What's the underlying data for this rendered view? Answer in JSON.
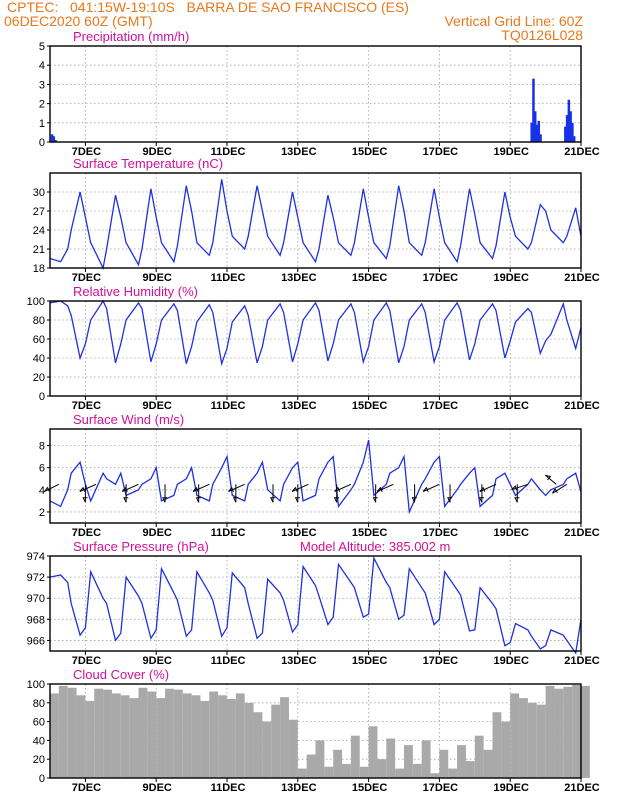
{
  "header": {
    "line1_left": "CPTEC:   041:15W-19:10S   BARRA DE SAO FRANCISCO (ES)",
    "line2_left": "06DEC2020 60Z (GMT)",
    "line2_right": "Vertical Grid Line: 60Z",
    "line3_right": "TQ0126L028"
  },
  "colors": {
    "header": "#e8781a",
    "title": "#d0109a",
    "line": "#2030e0",
    "bar_precip": "#1830e8",
    "bar_cloud": "#a9a9a9",
    "arrow": "#000000"
  },
  "x_axis": {
    "ticks": [
      "7DEC",
      "9DEC",
      "11DEC",
      "13DEC",
      "15DEC",
      "17DEC",
      "19DEC",
      "21DEC"
    ],
    "tick_days": [
      7,
      9,
      11,
      13,
      15,
      17,
      19,
      21
    ],
    "range_days": [
      6,
      21
    ],
    "unit": "day of December 2020"
  },
  "chart_data": [
    {
      "type": "bar",
      "title": "Precipitation (mm/h)",
      "ylim": [
        0,
        5
      ],
      "yticks": [
        "0",
        "1",
        "2",
        "3",
        "4",
        "5"
      ],
      "yticks_values": [
        0,
        1,
        2,
        3,
        4,
        5
      ],
      "grid": true,
      "x": [
        6.05,
        6.1,
        6.15,
        19.6,
        19.65,
        19.7,
        19.75,
        19.8,
        19.85,
        20.55,
        20.6,
        20.65,
        20.7,
        20.75,
        20.8
      ],
      "values": [
        0.4,
        0.3,
        0.1,
        1.0,
        3.3,
        1.6,
        0.9,
        1.1,
        0.4,
        0.8,
        1.4,
        2.2,
        1.6,
        1.0,
        0.3
      ]
    },
    {
      "type": "line",
      "title": "Surface Temperature (nC)",
      "ylim": [
        18,
        33
      ],
      "yticks": [
        "18",
        "21",
        "24",
        "27",
        "30"
      ],
      "yticks_values": [
        18,
        21,
        24,
        27,
        30
      ],
      "grid": true,
      "x": [
        6.0,
        6.3,
        6.5,
        6.6,
        6.85,
        7.0,
        7.15,
        7.5,
        7.6,
        7.85,
        8.0,
        8.15,
        8.5,
        8.6,
        8.85,
        9.0,
        9.15,
        9.5,
        9.6,
        9.85,
        10.0,
        10.15,
        10.5,
        10.6,
        10.85,
        11.0,
        11.15,
        11.5,
        11.6,
        11.85,
        12.0,
        12.15,
        12.5,
        12.6,
        12.85,
        13.0,
        13.15,
        13.5,
        13.6,
        13.85,
        14.0,
        14.15,
        14.5,
        14.6,
        14.85,
        15.0,
        15.15,
        15.5,
        15.6,
        15.85,
        16.0,
        16.15,
        16.5,
        16.6,
        16.85,
        17.0,
        17.15,
        17.5,
        17.6,
        17.85,
        18.0,
        18.15,
        18.5,
        18.6,
        18.85,
        19.0,
        19.15,
        19.5,
        19.6,
        19.85,
        20.0,
        20.15,
        20.5,
        20.6,
        20.85,
        21.0
      ],
      "values": [
        19.5,
        19.0,
        21,
        24,
        30,
        26,
        22,
        18,
        21,
        29.5,
        26,
        22,
        18.5,
        21,
        30.5,
        26,
        22,
        19,
        21.5,
        31,
        27,
        22,
        20,
        22,
        32,
        27,
        23,
        21,
        23,
        31,
        27,
        23,
        20,
        22,
        30,
        26,
        22,
        19,
        21,
        29.5,
        26,
        22,
        20,
        22,
        30.5,
        26,
        22,
        19.5,
        21.5,
        31,
        27,
        22,
        20,
        22,
        30.5,
        26,
        22,
        19,
        21.5,
        30.5,
        26.5,
        22,
        19.5,
        21.5,
        30,
        26,
        23,
        21,
        22,
        28,
        27,
        24,
        22,
        23,
        27.5,
        23
      ]
    },
    {
      "type": "line",
      "title": "Relative Humidity (%)",
      "ylim": [
        0,
        100
      ],
      "yticks": [
        "0",
        "20",
        "40",
        "60",
        "80",
        "100"
      ],
      "yticks_values": [
        0,
        20,
        40,
        60,
        80,
        100
      ],
      "grid": true,
      "x": [
        6.0,
        6.3,
        6.5,
        6.6,
        6.85,
        7.0,
        7.15,
        7.5,
        7.6,
        7.85,
        8.0,
        8.15,
        8.5,
        8.6,
        8.85,
        9.0,
        9.15,
        9.5,
        9.6,
        9.85,
        10.0,
        10.15,
        10.5,
        10.6,
        10.85,
        11.0,
        11.15,
        11.5,
        11.6,
        11.85,
        12.0,
        12.15,
        12.5,
        12.6,
        12.85,
        13.0,
        13.15,
        13.5,
        13.6,
        13.85,
        14.0,
        14.15,
        14.5,
        14.6,
        14.85,
        15.0,
        15.15,
        15.5,
        15.6,
        15.85,
        16.0,
        16.15,
        16.5,
        16.6,
        16.85,
        17.0,
        17.15,
        17.5,
        17.6,
        17.85,
        18.0,
        18.15,
        18.5,
        18.6,
        18.85,
        19.0,
        19.15,
        19.5,
        19.6,
        19.85,
        20.0,
        20.15,
        20.5,
        20.6,
        20.85,
        21.0
      ],
      "values": [
        98,
        100,
        95,
        85,
        40,
        55,
        80,
        100,
        92,
        35,
        55,
        80,
        98,
        92,
        36,
        55,
        80,
        97,
        90,
        34,
        52,
        78,
        96,
        88,
        34,
        50,
        78,
        95,
        85,
        35,
        52,
        80,
        97,
        88,
        36,
        55,
        80,
        98,
        90,
        37,
        55,
        80,
        97,
        88,
        36,
        52,
        80,
        98,
        90,
        35,
        52,
        80,
        97,
        88,
        36,
        52,
        80,
        98,
        90,
        38,
        55,
        80,
        97,
        90,
        40,
        58,
        78,
        92,
        88,
        45,
        58,
        65,
        97,
        80,
        50,
        72
      ]
    },
    {
      "type": "line",
      "title": "Surface Wind (m/s)",
      "ylim": [
        1,
        9.5
      ],
      "yticks": [
        "2",
        "4",
        "6",
        "8"
      ],
      "yticks_values": [
        2,
        4,
        6,
        8
      ],
      "grid": true,
      "x": [
        6.0,
        6.3,
        6.5,
        6.6,
        6.85,
        7.0,
        7.15,
        7.5,
        7.6,
        7.85,
        8.0,
        8.15,
        8.5,
        8.6,
        8.85,
        9.0,
        9.15,
        9.5,
        9.6,
        9.85,
        10.0,
        10.15,
        10.5,
        10.6,
        10.85,
        11.0,
        11.15,
        11.5,
        11.6,
        11.85,
        12.0,
        12.15,
        12.5,
        12.6,
        12.85,
        13.0,
        13.15,
        13.5,
        13.6,
        13.85,
        14.0,
        14.15,
        14.5,
        14.6,
        14.85,
        15.0,
        15.15,
        15.5,
        15.6,
        15.85,
        16.0,
        16.15,
        16.5,
        16.6,
        16.85,
        17.0,
        17.15,
        17.5,
        17.6,
        17.85,
        18.0,
        18.15,
        18.5,
        18.6,
        18.85,
        19.0,
        19.15,
        19.5,
        19.6,
        19.85,
        20.0,
        20.15,
        20.5,
        20.6,
        20.85,
        21.0
      ],
      "values": [
        3.0,
        2.5,
        4.0,
        5.5,
        6.5,
        4.5,
        3.0,
        5.5,
        5.0,
        4.5,
        5.5,
        3.5,
        4.0,
        4.5,
        5.0,
        6.0,
        3.0,
        3.5,
        4.5,
        5.0,
        6.0,
        3.5,
        3.0,
        4.5,
        6.0,
        7.0,
        3.5,
        3.0,
        4.5,
        5.5,
        6.5,
        4.0,
        3.0,
        4.5,
        6.0,
        6.5,
        3.0,
        3.5,
        5.0,
        6.5,
        7.0,
        2.5,
        4.0,
        4.5,
        6.5,
        8.5,
        3.5,
        4.5,
        5.5,
        6.0,
        7.0,
        2.0,
        4.5,
        5.0,
        6.5,
        7.0,
        2.5,
        4.0,
        4.5,
        5.5,
        6.0,
        2.5,
        3.5,
        5.0,
        5.5,
        4.5,
        3.5,
        4.5,
        5.0,
        4.0,
        3.5,
        4.0,
        4.5,
        5.0,
        5.5,
        3.8
      ],
      "wind_vectors": {
        "x": [
          6.25,
          7.0,
          7.3,
          8.15,
          8.5,
          9.25,
          10.2,
          10.5,
          11.25,
          11.5,
          12.3,
          13.0,
          13.3,
          14.1,
          14.5,
          15.2,
          15.7,
          16.3,
          17.0,
          17.3,
          18.2,
          18.6,
          19.2,
          19.5,
          20.3,
          20.6
        ],
        "u": [
          -0.8,
          0.0,
          -0.9,
          0.0,
          -0.9,
          0.0,
          0.0,
          -0.9,
          0.0,
          -0.9,
          0.0,
          0.0,
          -0.9,
          0.0,
          -0.9,
          0.0,
          -0.9,
          0.0,
          -0.9,
          0.0,
          0.0,
          -0.9,
          0.0,
          -0.9,
          -0.6,
          -0.8
        ],
        "v": [
          -0.4,
          -1.0,
          -0.4,
          -1.0,
          -0.4,
          -1.0,
          -1.0,
          -0.4,
          -1.0,
          -0.4,
          -1.0,
          -1.0,
          -0.4,
          -1.0,
          -0.4,
          -1.0,
          -0.4,
          -1.0,
          -0.4,
          -1.0,
          -1.0,
          -0.4,
          -1.0,
          -0.3,
          0.5,
          -0.5
        ]
      }
    },
    {
      "type": "line",
      "title": "Surface Pressure (hPa)",
      "annotation": "Model Altitude: 385.002  m",
      "ylim": [
        965,
        974
      ],
      "yticks": [
        "966",
        "968",
        "970",
        "972",
        "974"
      ],
      "yticks_values": [
        966,
        968,
        970,
        972,
        974
      ],
      "grid": true,
      "x": [
        6.0,
        6.3,
        6.5,
        6.6,
        6.85,
        7.0,
        7.15,
        7.5,
        7.6,
        7.85,
        8.0,
        8.15,
        8.5,
        8.6,
        8.85,
        9.0,
        9.15,
        9.5,
        9.6,
        9.85,
        10.0,
        10.15,
        10.5,
        10.6,
        10.85,
        11.0,
        11.15,
        11.5,
        11.6,
        11.85,
        12.0,
        12.15,
        12.5,
        12.6,
        12.85,
        13.0,
        13.15,
        13.5,
        13.6,
        13.85,
        14.0,
        14.15,
        14.5,
        14.6,
        14.85,
        15.0,
        15.15,
        15.5,
        15.6,
        15.85,
        16.0,
        16.15,
        16.5,
        16.6,
        16.85,
        17.0,
        17.15,
        17.5,
        17.6,
        17.85,
        18.0,
        18.15,
        18.5,
        18.6,
        18.85,
        19.0,
        19.15,
        19.5,
        19.6,
        19.85,
        20.0,
        20.15,
        20.5,
        20.6,
        20.85,
        21.0
      ],
      "values": [
        972.0,
        972.2,
        971.5,
        969.5,
        966.5,
        967.2,
        972.5,
        970.0,
        969.5,
        966.0,
        966.7,
        972.0,
        970.2,
        969.5,
        966.2,
        967.0,
        972.8,
        970.5,
        969.8,
        966.4,
        967.0,
        972.5,
        970.5,
        969.8,
        966.4,
        967.2,
        972.4,
        971.0,
        969.5,
        966.2,
        966.7,
        971.8,
        970.5,
        969.8,
        966.8,
        967.5,
        973.0,
        971.2,
        970.2,
        967.5,
        968.2,
        973.2,
        971.5,
        971.0,
        968.2,
        968.5,
        973.8,
        971.5,
        971.0,
        968.0,
        968.4,
        972.8,
        971.0,
        970.5,
        967.5,
        968.0,
        972.5,
        970.8,
        970.3,
        966.9,
        967.0,
        971.0,
        969.5,
        969.0,
        965.5,
        965.8,
        967.6,
        967.0,
        966.4,
        965.2,
        965.5,
        967.0,
        966.5,
        966.0,
        964.8,
        968.0
      ]
    },
    {
      "type": "area",
      "title": "Cloud Cover (%)",
      "ylim": [
        0,
        100
      ],
      "yticks": [
        "0",
        "20",
        "40",
        "60",
        "80",
        "100"
      ],
      "yticks_values": [
        0,
        20,
        40,
        60,
        80,
        100
      ],
      "grid": true,
      "x": [
        6.0,
        6.25,
        6.5,
        6.75,
        7.0,
        7.25,
        7.5,
        7.75,
        8.0,
        8.25,
        8.5,
        8.75,
        9.0,
        9.25,
        9.5,
        9.75,
        10.0,
        10.25,
        10.5,
        10.75,
        11.0,
        11.25,
        11.5,
        11.75,
        12.0,
        12.25,
        12.5,
        12.75,
        13.0,
        13.25,
        13.5,
        13.75,
        14.0,
        14.25,
        14.5,
        14.75,
        15.0,
        15.25,
        15.5,
        15.75,
        16.0,
        16.25,
        16.5,
        16.75,
        17.0,
        17.25,
        17.5,
        17.75,
        18.0,
        18.25,
        18.5,
        18.75,
        19.0,
        19.25,
        19.5,
        19.75,
        20.0,
        20.25,
        20.5,
        20.75,
        21.0
      ],
      "values": [
        90,
        98,
        96,
        88,
        82,
        95,
        94,
        90,
        88,
        85,
        96,
        92,
        85,
        95,
        94,
        90,
        88,
        82,
        92,
        88,
        84,
        90,
        80,
        70,
        60,
        78,
        86,
        62,
        10,
        25,
        40,
        12,
        30,
        15,
        45,
        12,
        55,
        20,
        42,
        10,
        35,
        15,
        40,
        5,
        30,
        10,
        35,
        18,
        45,
        30,
        70,
        60,
        90,
        85,
        80,
        78,
        98,
        95,
        97,
        99,
        98
      ]
    }
  ]
}
